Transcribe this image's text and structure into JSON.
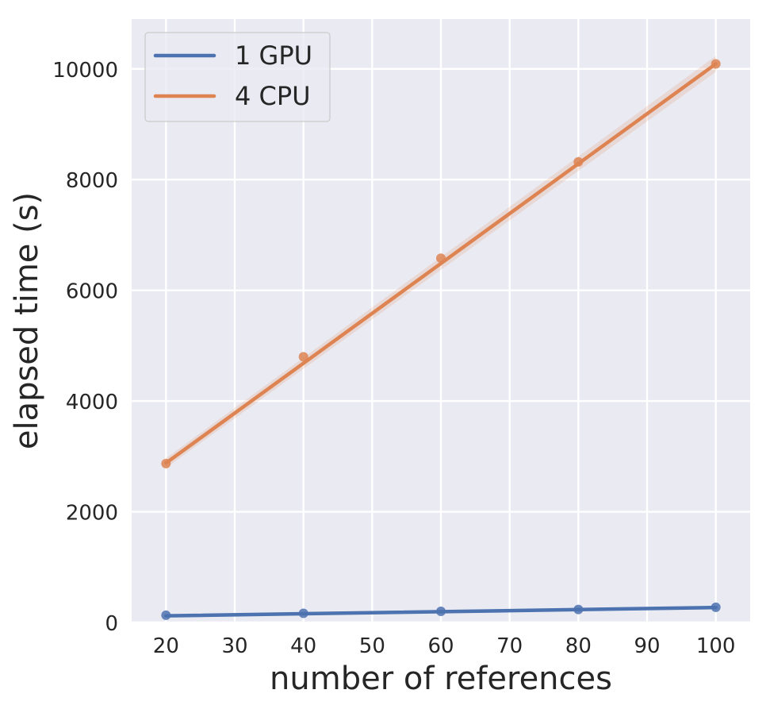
{
  "chart_data": {
    "type": "line",
    "title": "",
    "xlabel": "number of references",
    "ylabel": "elapsed time (s)",
    "xlim": [
      15,
      105
    ],
    "ylim": [
      0,
      10900
    ],
    "x_ticks": [
      20,
      30,
      40,
      50,
      60,
      70,
      80,
      90,
      100
    ],
    "y_ticks": [
      0,
      2000,
      4000,
      6000,
      8000,
      10000
    ],
    "grid": true,
    "legend_position": "top-left",
    "series": [
      {
        "name": "1 GPU",
        "color": "#4c72b0",
        "x": [
          20,
          40,
          60,
          80,
          100
        ],
        "points": [
          130,
          165,
          200,
          235,
          275
        ],
        "fit": [
          120,
          270
        ]
      },
      {
        "name": "4 CPU",
        "color": "#dd8452",
        "x": [
          20,
          40,
          60,
          80,
          100
        ],
        "points": [
          2870,
          4800,
          6580,
          8320,
          10090
        ],
        "fit": [
          2880,
          10090
        ]
      }
    ]
  }
}
